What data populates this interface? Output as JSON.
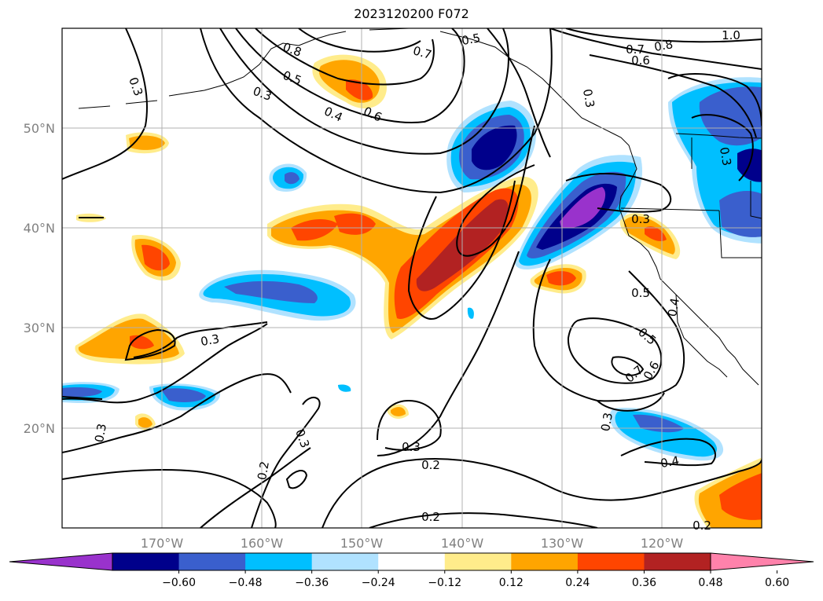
{
  "title": "2023120200 F072",
  "map": {
    "projection": "lat-lon",
    "lon_range": [
      -180,
      -110
    ],
    "lat_range": [
      10,
      60
    ],
    "lon_ticks": [
      "170°W",
      "160°W",
      "150°W",
      "140°W",
      "130°W",
      "120°W"
    ],
    "lat_ticks": [
      "20°N",
      "30°N",
      "40°N",
      "50°N"
    ],
    "gridlines": true
  },
  "colorbar": {
    "ticks": [
      "−0.60",
      "−0.48",
      "−0.36",
      "−0.24",
      "−0.12",
      "0.12",
      "0.24",
      "0.36",
      "0.48",
      "0.60"
    ],
    "levels": [
      -0.6,
      -0.48,
      -0.36,
      -0.24,
      -0.12,
      0.12,
      0.24,
      0.36,
      0.48,
      0.6
    ],
    "colors": [
      "#9932cc",
      "#00008b",
      "#3a5fcd",
      "#00bfff",
      "#b0e2ff",
      "#ffffff",
      "#ffec8b",
      "#ffa500",
      "#ff4500",
      "#b22222",
      "#ff82ab"
    ],
    "extend": "both"
  },
  "contour_labels": [
    {
      "text": "0.3"
    },
    {
      "text": "0.5"
    },
    {
      "text": "0.3"
    },
    {
      "text": "0.4"
    },
    {
      "text": "0.6"
    },
    {
      "text": "0.7"
    },
    {
      "text": "0.5"
    },
    {
      "text": "0.8"
    },
    {
      "text": "0.7"
    },
    {
      "text": "0.6"
    },
    {
      "text": "1.0"
    },
    {
      "text": "0.8"
    },
    {
      "text": "0.3"
    },
    {
      "text": "0.3"
    },
    {
      "text": "0.3"
    },
    {
      "text": "0.5"
    },
    {
      "text": "0.4"
    },
    {
      "text": "0.5"
    },
    {
      "text": "0.6"
    },
    {
      "text": "0.7"
    },
    {
      "text": "0.3"
    },
    {
      "text": "0.4"
    },
    {
      "text": "0.3"
    },
    {
      "text": "0.3"
    },
    {
      "text": "0.2"
    },
    {
      "text": "0.2"
    },
    {
      "text": "0.2"
    },
    {
      "text": "0.3"
    },
    {
      "text": "0.2"
    },
    {
      "text": "0.3"
    }
  ]
}
